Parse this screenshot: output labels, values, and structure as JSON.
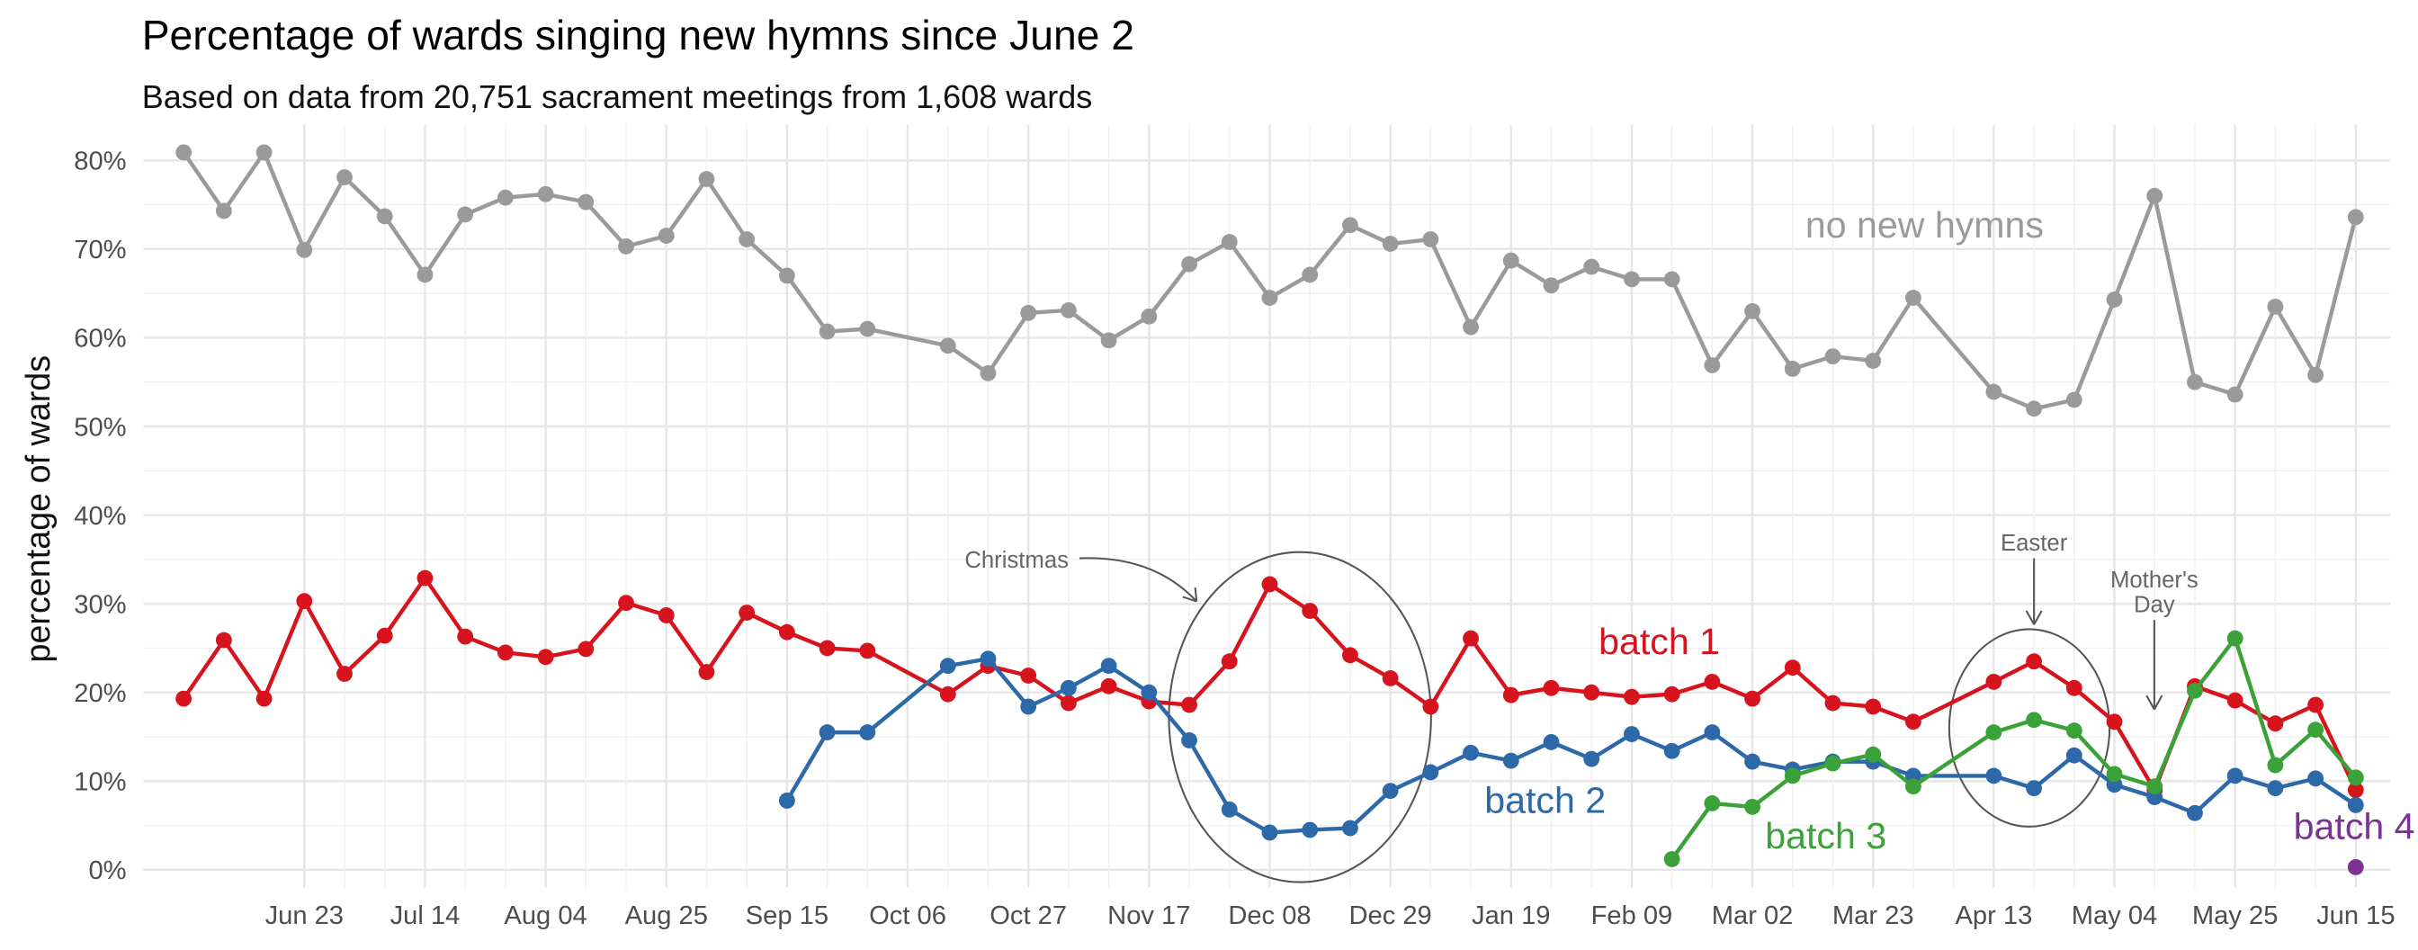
{
  "chart_data": {
    "type": "line",
    "title": "Percentage of wards singing new hymns since June 2",
    "subtitle": "Based on data from 20,751 sacrament meetings from 1,608 wards",
    "y_label": "percentage of wards",
    "x": [
      "Jun 02",
      "Jun 09",
      "Jun 16",
      "Jun 23",
      "Jun 30",
      "Jul 07",
      "Jul 14",
      "Jul 21",
      "Jul 28",
      "Aug 04",
      "Aug 11",
      "Aug 18",
      "Aug 25",
      "Sep 01",
      "Sep 08",
      "Sep 15",
      "Sep 22",
      "Sep 29",
      "Oct 13",
      "Oct 20",
      "Oct 27",
      "Nov 03",
      "Nov 10",
      "Nov 17",
      "Nov 24",
      "Dec 01",
      "Dec 08",
      "Dec 15",
      "Dec 22",
      "Dec 29",
      "Jan 05",
      "Jan 12",
      "Jan 19",
      "Jan 26",
      "Feb 02",
      "Feb 09",
      "Feb 16",
      "Feb 23",
      "Mar 02",
      "Mar 09",
      "Mar 16",
      "Mar 23",
      "Mar 30",
      "Apr 13",
      "Apr 20",
      "Apr 27",
      "May 04",
      "May 11",
      "May 18",
      "May 25",
      "Jun 01",
      "Jun 08",
      "Jun 15"
    ],
    "xlim": [
      "May 26",
      "Jun 21"
    ],
    "xticks": [
      "Jun 23",
      "Jul 14",
      "Aug 04",
      "Aug 25",
      "Sep 15",
      "Oct 06",
      "Oct 27",
      "Nov 17",
      "Dec 08",
      "Dec 29",
      "Jan 19",
      "Feb 09",
      "Mar 02",
      "Mar 23",
      "Apr 13",
      "May 04",
      "May 25",
      "Jun 15"
    ],
    "ylim": [
      -2,
      84
    ],
    "yticks": [
      {
        "value": 0,
        "label": "0%"
      },
      {
        "value": 10,
        "label": "10%"
      },
      {
        "value": 20,
        "label": "20%"
      },
      {
        "value": 30,
        "label": "30%"
      },
      {
        "value": 40,
        "label": "40%"
      },
      {
        "value": 50,
        "label": "50%"
      },
      {
        "value": 60,
        "label": "60%"
      },
      {
        "value": 70,
        "label": "70%"
      },
      {
        "value": 80,
        "label": "80%"
      }
    ],
    "grid": true,
    "series": [
      {
        "name": "no new hymns",
        "color": "#9a9a9a",
        "values": [
          80.9,
          74.3,
          80.9,
          69.9,
          78.1,
          73.7,
          67.1,
          73.9,
          75.8,
          76.2,
          75.3,
          70.3,
          71.5,
          77.9,
          71.1,
          67.0,
          60.7,
          61.0,
          59.1,
          56.0,
          62.8,
          63.1,
          59.7,
          62.4,
          68.3,
          70.8,
          64.5,
          67.1,
          72.7,
          70.6,
          71.1,
          61.2,
          68.7,
          65.9,
          68.0,
          66.6,
          66.6,
          56.9,
          63.0,
          56.5,
          57.9,
          57.4,
          64.5,
          53.9,
          52.0,
          53.0,
          64.3,
          76.0,
          55.0,
          53.6,
          63.5,
          55.8,
          73.6
        ]
      },
      {
        "name": "batch 1",
        "color": "#d7141e",
        "values": [
          19.3,
          25.9,
          19.3,
          30.3,
          22.1,
          26.4,
          32.9,
          26.3,
          24.5,
          24.0,
          24.9,
          30.1,
          28.7,
          22.3,
          29.0,
          26.8,
          25.0,
          24.7,
          19.8,
          23.0,
          21.9,
          18.8,
          20.7,
          19.0,
          18.6,
          23.5,
          32.2,
          29.2,
          24.2,
          21.6,
          18.4,
          26.1,
          19.7,
          20.5,
          20.0,
          19.5,
          19.8,
          21.2,
          19.3,
          22.8,
          18.8,
          18.4,
          16.7,
          21.2,
          23.5,
          20.5,
          16.7,
          9.0,
          20.7,
          19.1,
          16.5,
          18.6,
          9.0
        ]
      },
      {
        "name": "batch 2",
        "color": "#2d68a8",
        "values": [
          null,
          null,
          null,
          null,
          null,
          null,
          null,
          null,
          null,
          null,
          null,
          null,
          null,
          null,
          null,
          7.8,
          15.5,
          15.5,
          23.0,
          23.8,
          18.4,
          20.5,
          23.0,
          20.0,
          14.6,
          6.8,
          4.2,
          4.5,
          4.7,
          8.9,
          11.0,
          13.2,
          12.3,
          14.4,
          12.5,
          15.3,
          13.4,
          15.5,
          12.2,
          11.3,
          12.2,
          12.2,
          10.6,
          10.6,
          9.2,
          12.9,
          9.6,
          8.2,
          6.4,
          10.6,
          9.2,
          10.3,
          7.3
        ]
      },
      {
        "name": "batch 3",
        "color": "#3ba23a",
        "values": [
          null,
          null,
          null,
          null,
          null,
          null,
          null,
          null,
          null,
          null,
          null,
          null,
          null,
          null,
          null,
          null,
          null,
          null,
          null,
          null,
          null,
          null,
          null,
          null,
          null,
          null,
          null,
          null,
          null,
          null,
          null,
          null,
          null,
          null,
          null,
          null,
          1.2,
          7.5,
          7.1,
          10.6,
          12.0,
          13.0,
          9.4,
          15.5,
          16.9,
          15.7,
          10.8,
          9.4,
          20.2,
          26.1,
          11.8,
          15.8,
          10.4
        ]
      },
      {
        "name": "batch 4",
        "color": "#7b3294",
        "values": [
          null,
          null,
          null,
          null,
          null,
          null,
          null,
          null,
          null,
          null,
          null,
          null,
          null,
          null,
          null,
          null,
          null,
          null,
          null,
          null,
          null,
          null,
          null,
          null,
          null,
          null,
          null,
          null,
          null,
          null,
          null,
          null,
          null,
          null,
          null,
          null,
          null,
          null,
          null,
          null,
          null,
          null,
          null,
          null,
          null,
          null,
          null,
          null,
          null,
          null,
          null,
          null,
          0.3
        ]
      }
    ],
    "annotations": [
      "Christmas",
      "Easter",
      "Mother's Day"
    ]
  }
}
